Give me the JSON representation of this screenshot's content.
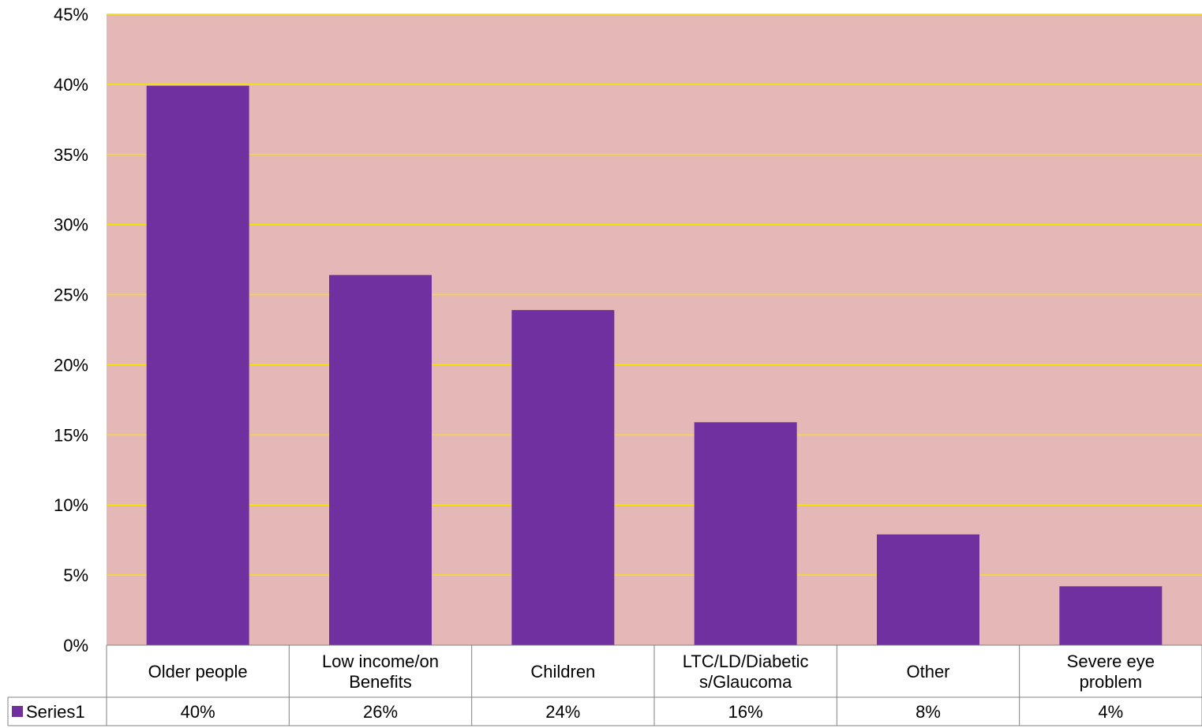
{
  "colors": {
    "plot_background": "#E5B8B8",
    "bar": "#7030A0",
    "gridline": "#F5E400",
    "table_border": "#808080"
  },
  "chart_data": {
    "type": "bar",
    "categories": [
      [
        "Older people"
      ],
      [
        "Low income/on",
        "Benefits"
      ],
      [
        "Children"
      ],
      [
        "LTC/LD/Diabetic",
        "s/Glaucoma"
      ],
      [
        "Other"
      ],
      [
        "Severe eye",
        "problem"
      ]
    ],
    "series": [
      {
        "name": "Series1",
        "values": [
          0.399,
          0.264,
          0.239,
          0.159,
          0.079,
          0.042
        ],
        "table_labels": [
          "40%",
          "26%",
          "24%",
          "16%",
          "8%",
          "4%"
        ]
      }
    ],
    "ylim": [
      0,
      0.45
    ],
    "yticks": [
      0,
      0.05,
      0.1,
      0.15,
      0.2,
      0.25,
      0.3,
      0.35,
      0.4,
      0.45
    ],
    "ytick_labels": [
      "0%",
      "5%",
      "10%",
      "15%",
      "20%",
      "25%",
      "30%",
      "35%",
      "40%",
      "45%"
    ],
    "grid": true,
    "data_table": true,
    "legend": "data-table-left"
  }
}
